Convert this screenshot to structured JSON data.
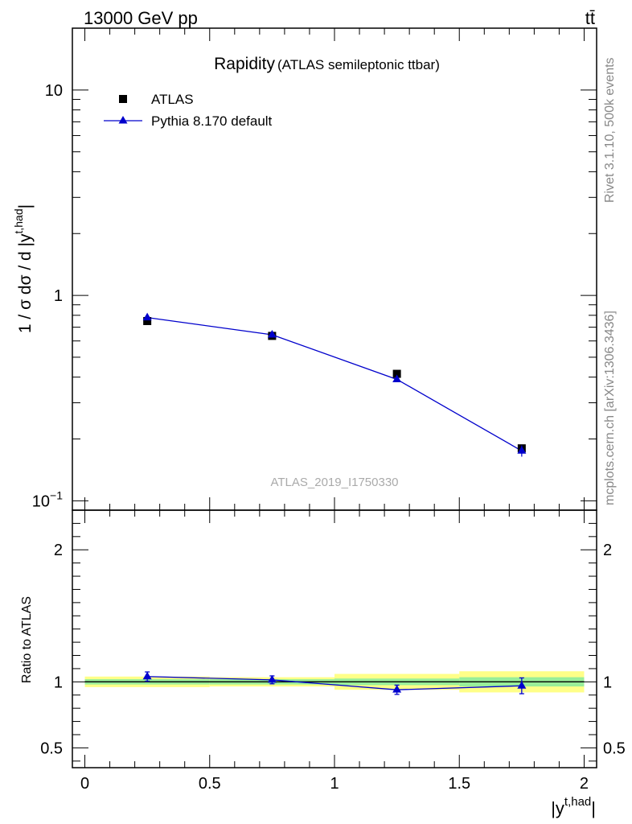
{
  "header": {
    "energy_label": "13000 GeV pp",
    "process_label": "tt̄"
  },
  "side": {
    "rivet_label": "Rivet 3.1.10,  500k events",
    "mcplots_label": "mcplots.cern.ch [arXiv:1306.3436]"
  },
  "chart_data": [
    {
      "type": "line",
      "scale": "log",
      "title": "Rapidity",
      "subtitle": "(ATLAS semileptonic ttbar)",
      "watermark": "ATLAS_2019_I1750330",
      "ylabel": "1 / σ dσ / d |y",
      "ylabel_sup": "t,had",
      "ylabel_tail": "|",
      "xlim": [
        -0.05,
        2.05
      ],
      "ylim": [
        0.09,
        20
      ],
      "yticks": [
        {
          "value": 0.1,
          "label": "10",
          "sup": "−1"
        },
        {
          "value": 1,
          "label": "1",
          "sup": ""
        },
        {
          "value": 10,
          "label": "10",
          "sup": ""
        }
      ],
      "legend": {
        "position": "top-left",
        "entries": [
          "ATLAS",
          "Pythia 8.170 default"
        ]
      },
      "series": [
        {
          "name": "ATLAS",
          "marker": "square",
          "color": "#000000",
          "x": [
            0.25,
            0.75,
            1.25,
            1.75
          ],
          "y": [
            0.75,
            0.635,
            0.415,
            0.18
          ],
          "yerr": [
            0.015,
            0.012,
            0.01,
            0.006
          ]
        },
        {
          "name": "Pythia 8.170 default",
          "marker": "triangle",
          "color": "#0000cc",
          "x": [
            0.25,
            0.75,
            1.25,
            1.75
          ],
          "y": [
            0.78,
            0.643,
            0.39,
            0.175
          ],
          "yerr": [
            0.02,
            0.015,
            0.012,
            0.011
          ]
        }
      ]
    },
    {
      "type": "line",
      "scale": "linear",
      "ylabel": "Ratio to ATLAS",
      "xlabel": "|y",
      "xlabel_sup": "t,had",
      "xlabel_tail": "|",
      "xlim": [
        -0.05,
        2.05
      ],
      "ylim": [
        0.35,
        2.3
      ],
      "xticks": [
        {
          "value": 0,
          "label": "0"
        },
        {
          "value": 0.5,
          "label": "0.5"
        },
        {
          "value": 1,
          "label": "1"
        },
        {
          "value": 1.5,
          "label": "1.5"
        },
        {
          "value": 2,
          "label": "2"
        }
      ],
      "yticks": [
        {
          "value": 0.5,
          "label": "0.5"
        },
        {
          "value": 1,
          "label": "1"
        },
        {
          "value": 2,
          "label": "2"
        }
      ],
      "bands": {
        "bins": [
          [
            0,
            0.5
          ],
          [
            0.5,
            1
          ],
          [
            1,
            1.5
          ],
          [
            1.5,
            2
          ]
        ],
        "stat": [
          0.02,
          0.02,
          0.025,
          0.035
        ],
        "total": [
          0.04,
          0.035,
          0.06,
          0.08
        ],
        "stat_color": "#99ee99",
        "total_color": "#ffff88"
      },
      "series": [
        {
          "name": "Pythia 8.170 default",
          "color": "#0000cc",
          "x": [
            0.25,
            0.75,
            1.25,
            1.75
          ],
          "y": [
            1.04,
            1.015,
            0.94,
            0.97
          ],
          "yerr": [
            0.035,
            0.03,
            0.035,
            0.06
          ]
        }
      ]
    }
  ]
}
